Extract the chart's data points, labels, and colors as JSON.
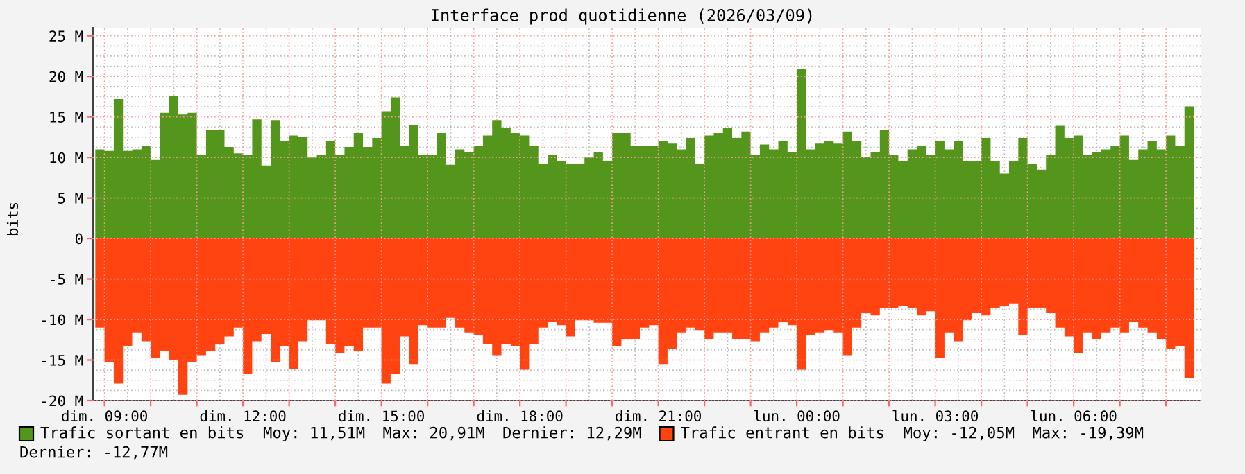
{
  "chart_data": {
    "type": "area",
    "title": "Interface prod quotidienne (2026/03/09)",
    "ylabel": "bits",
    "x": [
      "2026-03-08T08:48",
      "2026-03-08T09:00",
      "2026-03-08T09:12",
      "2026-03-08T09:24",
      "2026-03-08T09:36",
      "2026-03-08T09:48",
      "2026-03-08T10:00",
      "2026-03-08T10:12",
      "2026-03-08T10:24",
      "2026-03-08T10:36",
      "2026-03-08T10:48",
      "2026-03-08T11:00",
      "2026-03-08T11:12",
      "2026-03-08T11:24",
      "2026-03-08T11:36",
      "2026-03-08T11:48",
      "2026-03-08T12:00",
      "2026-03-08T12:12",
      "2026-03-08T12:24",
      "2026-03-08T12:36",
      "2026-03-08T12:48",
      "2026-03-08T13:00",
      "2026-03-08T13:12",
      "2026-03-08T13:24",
      "2026-03-08T13:36",
      "2026-03-08T13:48",
      "2026-03-08T14:00",
      "2026-03-08T14:12",
      "2026-03-08T14:24",
      "2026-03-08T14:36",
      "2026-03-08T14:48",
      "2026-03-08T15:00",
      "2026-03-08T15:12",
      "2026-03-08T15:24",
      "2026-03-08T15:36",
      "2026-03-08T15:48",
      "2026-03-08T16:00",
      "2026-03-08T16:12",
      "2026-03-08T16:24",
      "2026-03-08T16:36",
      "2026-03-08T16:48",
      "2026-03-08T17:00",
      "2026-03-08T17:12",
      "2026-03-08T17:24",
      "2026-03-08T17:36",
      "2026-03-08T17:48",
      "2026-03-08T18:00",
      "2026-03-08T18:12",
      "2026-03-08T18:24",
      "2026-03-08T18:36",
      "2026-03-08T18:48",
      "2026-03-08T19:00",
      "2026-03-08T19:12",
      "2026-03-08T19:24",
      "2026-03-08T19:36",
      "2026-03-08T19:48",
      "2026-03-08T20:00",
      "2026-03-08T20:12",
      "2026-03-08T20:24",
      "2026-03-08T20:36",
      "2026-03-08T20:48",
      "2026-03-08T21:00",
      "2026-03-08T21:12",
      "2026-03-08T21:24",
      "2026-03-08T21:36",
      "2026-03-08T21:48",
      "2026-03-08T22:00",
      "2026-03-08T22:12",
      "2026-03-08T22:24",
      "2026-03-08T22:36",
      "2026-03-08T22:48",
      "2026-03-08T23:00",
      "2026-03-08T23:12",
      "2026-03-08T23:24",
      "2026-03-08T23:36",
      "2026-03-08T23:48",
      "2026-03-09T00:00",
      "2026-03-09T00:12",
      "2026-03-09T00:24",
      "2026-03-09T00:36",
      "2026-03-09T00:48",
      "2026-03-09T01:00",
      "2026-03-09T01:12",
      "2026-03-09T01:24",
      "2026-03-09T01:36",
      "2026-03-09T01:48",
      "2026-03-09T02:00",
      "2026-03-09T02:12",
      "2026-03-09T02:24",
      "2026-03-09T02:36",
      "2026-03-09T02:48",
      "2026-03-09T03:00",
      "2026-03-09T03:12",
      "2026-03-09T03:24",
      "2026-03-09T03:36",
      "2026-03-09T03:48",
      "2026-03-09T04:00",
      "2026-03-09T04:12",
      "2026-03-09T04:24",
      "2026-03-09T04:36",
      "2026-03-09T04:48",
      "2026-03-09T05:00",
      "2026-03-09T05:12",
      "2026-03-09T05:24",
      "2026-03-09T05:36",
      "2026-03-09T05:48",
      "2026-03-09T06:00",
      "2026-03-09T06:12",
      "2026-03-09T06:24",
      "2026-03-09T06:36",
      "2026-03-09T06:48",
      "2026-03-09T07:00",
      "2026-03-09T07:12",
      "2026-03-09T07:24",
      "2026-03-09T07:36",
      "2026-03-09T07:48",
      "2026-03-09T08:00",
      "2026-03-09T08:12",
      "2026-03-09T08:24",
      "2026-03-09T08:36"
    ],
    "series": [
      {
        "name": "Trafic sortant en bits",
        "color": "#54961c",
        "values": [
          11.0,
          10.8,
          17.2,
          10.8,
          11.0,
          11.4,
          9.7,
          15.5,
          17.6,
          15.3,
          15.5,
          10.3,
          13.4,
          13.4,
          11.3,
          10.5,
          10.3,
          14.7,
          9.0,
          14.6,
          12.0,
          12.7,
          12.5,
          10.0,
          10.3,
          12.0,
          10.3,
          11.3,
          13.0,
          11.3,
          12.4,
          15.7,
          17.4,
          11.4,
          14.0,
          10.3,
          10.3,
          13.0,
          9.1,
          11.0,
          10.6,
          11.4,
          12.7,
          14.6,
          13.6,
          13.0,
          12.7,
          11.4,
          9.2,
          10.3,
          9.5,
          9.2,
          9.2,
          10.0,
          10.6,
          9.5,
          13.0,
          13.0,
          11.4,
          11.4,
          11.4,
          12.0,
          11.7,
          11.0,
          12.4,
          9.2,
          12.7,
          13.0,
          13.6,
          12.4,
          13.2,
          10.3,
          11.6,
          11.0,
          12.0,
          10.6,
          20.9,
          11.0,
          11.7,
          12.0,
          11.7,
          13.2,
          12.0,
          10.1,
          10.6,
          13.4,
          10.3,
          9.5,
          11.0,
          11.4,
          10.3,
          12.0,
          11.0,
          12.0,
          9.5,
          9.5,
          12.4,
          9.5,
          8.0,
          9.5,
          12.4,
          9.2,
          8.5,
          10.3,
          13.9,
          12.4,
          12.7,
          10.3,
          10.6,
          11.0,
          11.4,
          12.7,
          9.7,
          11.0,
          12.0,
          11.0,
          12.7,
          11.4,
          16.3,
          12.3
        ]
      },
      {
        "name": "Trafic entrant en bits",
        "color": "#ff4412",
        "values": [
          -11.0,
          -15.3,
          -17.9,
          -13.3,
          -11.6,
          -12.7,
          -14.7,
          -13.9,
          -15.0,
          -19.3,
          -15.3,
          -14.4,
          -13.9,
          -13.0,
          -12.1,
          -11.0,
          -16.7,
          -12.7,
          -11.8,
          -15.3,
          -13.3,
          -16.1,
          -12.7,
          -10.1,
          -10.1,
          -13.0,
          -14.1,
          -13.3,
          -13.9,
          -11.0,
          -11.0,
          -17.9,
          -16.7,
          -12.1,
          -15.5,
          -10.7,
          -11.0,
          -11.0,
          -9.8,
          -11.0,
          -11.6,
          -11.9,
          -13.0,
          -14.4,
          -13.0,
          -13.3,
          -16.2,
          -13.0,
          -11.0,
          -10.3,
          -10.7,
          -12.1,
          -10.1,
          -10.1,
          -10.4,
          -10.4,
          -13.3,
          -12.4,
          -12.4,
          -11.0,
          -10.7,
          -15.5,
          -13.6,
          -11.6,
          -11.0,
          -11.3,
          -12.4,
          -11.6,
          -11.6,
          -12.4,
          -12.4,
          -12.7,
          -11.6,
          -11.0,
          -10.3,
          -10.7,
          -16.2,
          -11.9,
          -11.6,
          -11.3,
          -11.6,
          -14.4,
          -11.0,
          -9.2,
          -9.5,
          -8.6,
          -8.6,
          -8.3,
          -8.6,
          -9.5,
          -9.0,
          -14.7,
          -11.6,
          -12.7,
          -10.1,
          -9.2,
          -9.5,
          -8.6,
          -8.3,
          -8.0,
          -11.9,
          -8.6,
          -8.6,
          -9.2,
          -11.0,
          -12.1,
          -14.1,
          -11.6,
          -12.4,
          -11.6,
          -11.0,
          -11.6,
          -10.3,
          -11.0,
          -11.6,
          -12.4,
          -13.6,
          -13.3,
          -17.2,
          -12.8
        ]
      }
    ],
    "xlim": [
      "2026-03-08T08:45",
      "2026-03-09T08:45"
    ],
    "xticks": [
      {
        "value": "2026-03-08T09:00",
        "label": "dim. 09:00"
      },
      {
        "value": "2026-03-08T10:00",
        "label": null
      },
      {
        "value": "2026-03-08T11:00",
        "label": null
      },
      {
        "value": "2026-03-08T12:00",
        "label": "dim. 12:00"
      },
      {
        "value": "2026-03-08T13:00",
        "label": null
      },
      {
        "value": "2026-03-08T14:00",
        "label": null
      },
      {
        "value": "2026-03-08T15:00",
        "label": "dim. 15:00"
      },
      {
        "value": "2026-03-08T16:00",
        "label": null
      },
      {
        "value": "2026-03-08T17:00",
        "label": null
      },
      {
        "value": "2026-03-08T18:00",
        "label": "dim. 18:00"
      },
      {
        "value": "2026-03-08T19:00",
        "label": null
      },
      {
        "value": "2026-03-08T20:00",
        "label": null
      },
      {
        "value": "2026-03-08T21:00",
        "label": "dim. 21:00"
      },
      {
        "value": "2026-03-08T22:00",
        "label": null
      },
      {
        "value": "2026-03-08T23:00",
        "label": null
      },
      {
        "value": "2026-03-09T00:00",
        "label": "lun. 00:00"
      },
      {
        "value": "2026-03-09T01:00",
        "label": null
      },
      {
        "value": "2026-03-09T02:00",
        "label": null
      },
      {
        "value": "2026-03-09T03:00",
        "label": "lun. 03:00"
      },
      {
        "value": "2026-03-09T04:00",
        "label": null
      },
      {
        "value": "2026-03-09T05:00",
        "label": null
      },
      {
        "value": "2026-03-09T06:00",
        "label": "lun. 06:00"
      },
      {
        "value": "2026-03-09T07:00",
        "label": null
      },
      {
        "value": "2026-03-09T08:00",
        "label": null
      }
    ],
    "ylim": [
      -20,
      26
    ],
    "yticks": [
      {
        "value": -20,
        "label": "-20 M"
      },
      {
        "value": -15,
        "label": "-15 M"
      },
      {
        "value": -10,
        "label": "-10 M"
      },
      {
        "value": -5,
        "label": "-5 M"
      },
      0,
      {
        "value": 5,
        "label": "5 M"
      },
      {
        "value": 10,
        "label": "10 M"
      },
      {
        "value": 15,
        "label": "15 M"
      },
      {
        "value": 20,
        "label": "20 M"
      },
      {
        "value": 25,
        "label": "25 M"
      }
    ],
    "grid": true,
    "legend": "bottom",
    "annotations": [
      "Moy: 11,51M",
      "Max: 20,91M",
      "Dernier: 12,29M",
      "Moy: -12,05M",
      "Max: -19,39M",
      "Dernier: -12,77M"
    ]
  }
}
